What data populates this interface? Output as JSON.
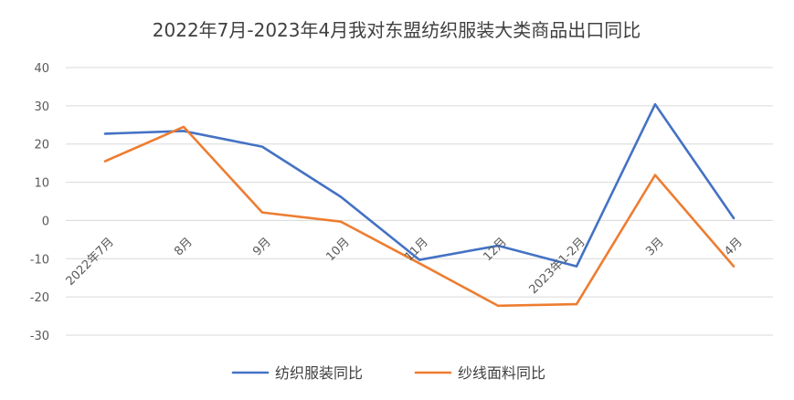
{
  "chart_data": {
    "type": "line",
    "title": "2022年7月-2023年4月我对东盟纺织服装大类商品出口同比",
    "categories": [
      "2022年7月",
      "8月",
      "9月",
      "10月",
      "11月",
      "12月",
      "2023年1-2月",
      "3月",
      "4月"
    ],
    "ylim": [
      -30,
      40
    ],
    "yticks": [
      40,
      30,
      20,
      10,
      0,
      -10,
      -20,
      -30
    ],
    "grid": true,
    "legend_position": "bottom",
    "series": [
      {
        "name": "纺织服装同比",
        "color": "#4472C4",
        "values": [
          22.7,
          23.4,
          19.3,
          6.2,
          -10.3,
          -6.6,
          -12.0,
          30.4,
          0.6
        ]
      },
      {
        "name": "纱线面料同比",
        "color": "#ED7D31",
        "values": [
          15.5,
          24.5,
          2.1,
          -0.3,
          -11.2,
          -22.3,
          -21.9,
          11.9,
          -12.0
        ]
      }
    ]
  }
}
